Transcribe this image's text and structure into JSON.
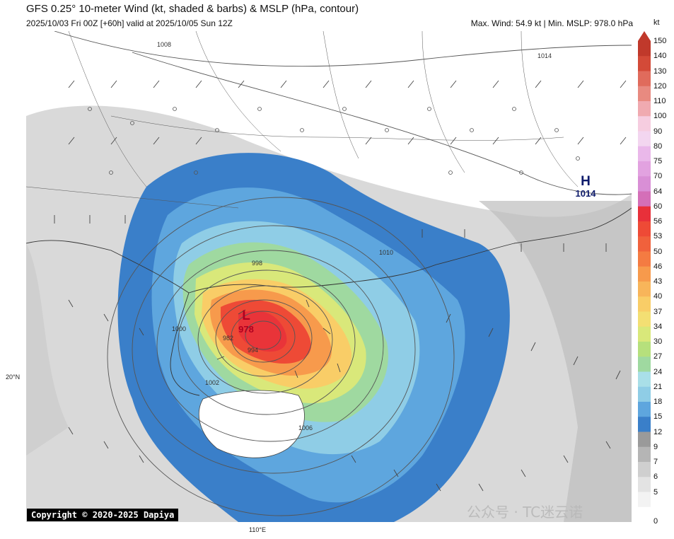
{
  "header": {
    "title": "GFS 0.25° 10-meter Wind (kt, shaded & barbs) & MSLP (hPa, contour)",
    "subtitle": "2025/10/03 Fri 00Z [+60h] valid at 2025/10/05 Sun 12Z",
    "stats": "Max. Wind: 54.9 kt | Min. MSLP: 978.0 hPa"
  },
  "map": {
    "lat_label": "20°N",
    "lon_label": "110°E",
    "low": {
      "letter": "L",
      "value": "978"
    },
    "high": {
      "letter": "H",
      "value": "1014"
    },
    "isobar_labels": [
      "1008",
      "1010",
      "998",
      "994",
      "982",
      "1000",
      "1002",
      "1006",
      "1014"
    ]
  },
  "colorbar": {
    "unit": "kt",
    "ticks": [
      "150",
      "140",
      "130",
      "120",
      "110",
      "100",
      "90",
      "80",
      "75",
      "70",
      "64",
      "60",
      "56",
      "53",
      "50",
      "46",
      "43",
      "40",
      "37",
      "34",
      "30",
      "27",
      "24",
      "21",
      "18",
      "15",
      "12",
      "9",
      "7",
      "6",
      "5",
      "0"
    ],
    "colors": [
      "#c0392b",
      "#d34a38",
      "#e06b5c",
      "#e88a80",
      "#f0aab0",
      "#f6cde0",
      "#f3d6f0",
      "#eab8ea",
      "#e2a2e0",
      "#d98fd6",
      "#d46fb8",
      "#e8303a",
      "#ee4a36",
      "#f0613c",
      "#f47b42",
      "#f79a4c",
      "#f8b55a",
      "#f9cd67",
      "#f3df73",
      "#d9e87a",
      "#b6e07c",
      "#9fd9a0",
      "#a9dfe8",
      "#8fcde6",
      "#5ea6de",
      "#3a7fc9",
      "#9a9a9a",
      "#b5b5b5",
      "#cfcfcf",
      "#e3e3e3",
      "#f3f3f3",
      "#ffffff"
    ]
  },
  "footer": {
    "copyright": "Copyright © 2020-2025 Dapiya",
    "watermark": "公众号 · TC迷云诺"
  }
}
